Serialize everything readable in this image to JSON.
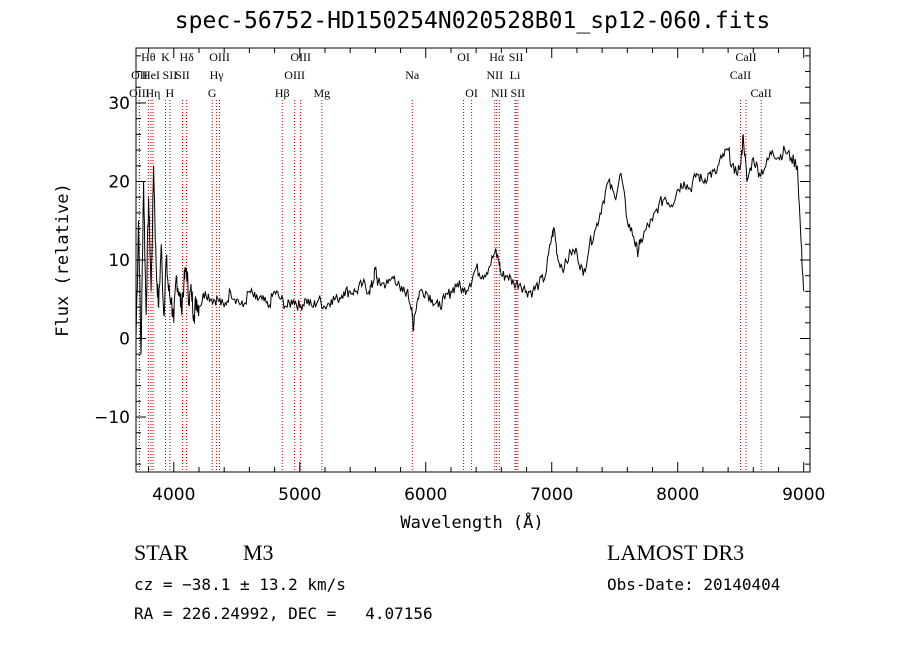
{
  "chart_data": {
    "type": "line",
    "title": "spec-56752-HD150254N020528B01_sp12-060.fits",
    "xlabel": "Wavelength (Å)",
    "ylabel": "Flux (relative)",
    "xlim": [
      3700,
      9050
    ],
    "ylim": [
      -17,
      37
    ],
    "xticks": [
      4000,
      5000,
      6000,
      7000,
      8000,
      9000
    ],
    "yticks": [
      -10,
      0,
      10,
      20,
      30
    ],
    "series": [
      {
        "name": "spectrum",
        "x": [
          3700,
          3720,
          3740,
          3760,
          3780,
          3800,
          3820,
          3840,
          3860,
          3880,
          3900,
          3920,
          3940,
          3960,
          3980,
          4000,
          4020,
          4040,
          4060,
          4080,
          4100,
          4120,
          4140,
          4160,
          4180,
          4200,
          4250,
          4300,
          4350,
          4400,
          4450,
          4500,
          4550,
          4600,
          4650,
          4700,
          4750,
          4800,
          4850,
          4900,
          4950,
          5000,
          5050,
          5100,
          5150,
          5200,
          5250,
          5300,
          5350,
          5400,
          5450,
          5500,
          5550,
          5580,
          5600,
          5620,
          5650,
          5700,
          5750,
          5800,
          5850,
          5890,
          5900,
          5910,
          5950,
          6000,
          6050,
          6100,
          6150,
          6200,
          6250,
          6300,
          6350,
          6400,
          6450,
          6500,
          6550,
          6580,
          6600,
          6650,
          6700,
          6750,
          6800,
          6850,
          6900,
          6950,
          7000,
          7020,
          7050,
          7100,
          7150,
          7200,
          7250,
          7300,
          7350,
          7400,
          7450,
          7500,
          7550,
          7600,
          7650,
          7680,
          7700,
          7750,
          7800,
          7850,
          7900,
          7950,
          8000,
          8050,
          8100,
          8150,
          8200,
          8250,
          8300,
          8350,
          8400,
          8450,
          8500,
          8520,
          8550,
          8600,
          8650,
          8700,
          8750,
          8800,
          8850,
          8900,
          8950,
          8980,
          9000
        ],
        "y": [
          0,
          15,
          -2,
          20,
          3,
          18,
          6,
          22,
          9,
          4,
          12,
          3,
          10,
          6,
          5,
          2,
          8,
          6,
          4,
          7,
          9,
          5,
          6,
          3,
          5,
          4,
          6,
          5,
          5,
          4,
          6,
          5,
          4,
          6,
          5,
          5,
          4,
          6,
          5,
          4,
          5,
          4,
          5,
          4,
          5,
          4,
          5,
          5,
          6,
          6,
          6,
          7,
          6,
          7,
          9,
          7,
          7,
          7,
          8,
          6,
          6,
          4,
          1,
          3,
          6,
          6,
          5,
          4,
          5,
          6,
          7,
          6,
          7,
          9,
          8,
          9,
          11,
          10,
          8,
          8,
          7,
          7,
          6,
          6,
          7,
          8,
          13,
          14,
          10,
          9,
          11,
          11,
          8,
          12,
          14,
          17,
          20,
          18,
          21,
          15,
          13,
          11,
          12,
          14,
          15,
          17,
          18,
          17,
          19,
          20,
          19,
          21,
          20,
          21,
          21,
          23,
          24,
          21,
          22,
          26,
          20,
          23,
          21,
          22,
          24,
          23,
          24,
          23,
          22,
          12,
          6
        ]
      }
    ],
    "lines": [
      {
        "name": "Hθ",
        "x": 3798,
        "row": 1,
        "color": "#c00000"
      },
      {
        "name": "OII",
        "x": 3727,
        "row": 2,
        "color": "#c00000"
      },
      {
        "name": "OIII",
        "x": 3727,
        "row": 3,
        "color": "#c00000"
      },
      {
        "name": "HeI",
        "x": 3819,
        "row": 2,
        "color": "#c00000"
      },
      {
        "name": "Hη",
        "x": 3835,
        "row": 3,
        "color": "#c00000"
      },
      {
        "name": "K",
        "x": 3934,
        "row": 1,
        "color": "#c00000"
      },
      {
        "name": "SII",
        "x": 3969,
        "row": 2,
        "color": "#c00000"
      },
      {
        "name": "H",
        "x": 3969,
        "row": 3,
        "color": "#c00000"
      },
      {
        "name": "Hδ",
        "x": 4102,
        "row": 1,
        "color": "#c00000"
      },
      {
        "name": "SII",
        "x": 4069,
        "row": 2,
        "color": "#c00000"
      },
      {
        "name": "OIII",
        "x": 4363,
        "row": 1,
        "color": "#c00000"
      },
      {
        "name": "Hγ",
        "x": 4340,
        "row": 2,
        "color": "#c00000"
      },
      {
        "name": "G",
        "x": 4305,
        "row": 3,
        "color": "#c00000"
      },
      {
        "name": "OIII",
        "x": 5007,
        "row": 1,
        "color": "#c00000"
      },
      {
        "name": "OIII",
        "x": 4959,
        "row": 2,
        "color": "#c00000"
      },
      {
        "name": "Hβ",
        "x": 4861,
        "row": 3,
        "color": "#c00000"
      },
      {
        "name": "Mg",
        "x": 5175,
        "row": 3,
        "color": "#c00000"
      },
      {
        "name": "Na",
        "x": 5893,
        "row": 2,
        "color": "#c00000"
      },
      {
        "name": "OI",
        "x": 6300,
        "row": 1,
        "color": "#c00000"
      },
      {
        "name": "OI",
        "x": 6364,
        "row": 3,
        "color": "#c00000"
      },
      {
        "name": "Hα",
        "x": 6563,
        "row": 1,
        "color": "#c00000"
      },
      {
        "name": "NII",
        "x": 6548,
        "row": 2,
        "color": "#c00000"
      },
      {
        "name": "NII",
        "x": 6584,
        "row": 3,
        "color": "#c00000"
      },
      {
        "name": "SII",
        "x": 6717,
        "row": 1,
        "color": "#c00000"
      },
      {
        "name": "Li",
        "x": 6708,
        "row": 2,
        "color": "#c00000"
      },
      {
        "name": "SII",
        "x": 6731,
        "row": 3,
        "color": "#c00000"
      },
      {
        "name": "CaII",
        "x": 8542,
        "row": 1,
        "color": "#c00000"
      },
      {
        "name": "CaII",
        "x": 8498,
        "row": 2,
        "color": "#c00000"
      },
      {
        "name": "CaII",
        "x": 8662,
        "row": 3,
        "color": "#c00000"
      }
    ]
  },
  "info": {
    "class": "STAR",
    "subclass": "M3",
    "survey": "LAMOST DR3",
    "cz": "cz = −38.1 ± 13.2 km/s",
    "obs_date": "Obs-Date: 20140404",
    "radec": "RA = 226.24992, DEC =   4.07156"
  }
}
